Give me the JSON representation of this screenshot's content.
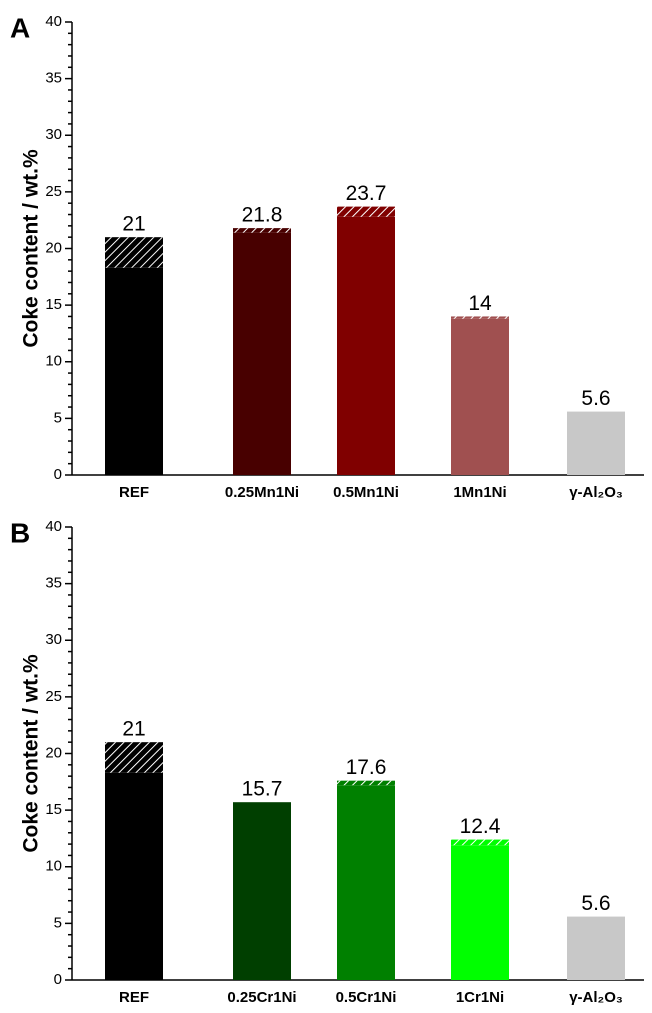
{
  "chart_data": [
    {
      "type": "bar",
      "panel_label": "A",
      "ylabel": "Coke content / wt.%",
      "categories": [
        "REF",
        "0.25Mn1Ni",
        "0.5Mn1Ni",
        "1Mn1Ni",
        "γ-Al₂O₃"
      ],
      "colors": [
        "#000000",
        "#480000",
        "#800000",
        "#a05050",
        "#c8c8c8"
      ],
      "series": [
        {
          "values": [
            18.3,
            21.4,
            22.8,
            13.8,
            5.6
          ]
        },
        {
          "values": [
            2.7,
            0.4,
            0.9,
            0.2,
            0
          ],
          "hatch": true
        }
      ],
      "totals": [
        21,
        21.8,
        23.7,
        14,
        5.6
      ],
      "ylim": [
        0,
        40
      ],
      "yticks": [
        0,
        5,
        10,
        15,
        20,
        25,
        30,
        35,
        40
      ]
    },
    {
      "type": "bar",
      "panel_label": "B",
      "ylabel": "Coke content / wt.%",
      "categories": [
        "REF",
        "0.25Cr1Ni",
        "0.5Cr1Ni",
        "1Cr1Ni",
        "γ-Al₂O₃"
      ],
      "colors": [
        "#000000",
        "#003f00",
        "#008000",
        "#00ff00",
        "#c8c8c8"
      ],
      "series": [
        {
          "values": [
            18.3,
            15.7,
            17.2,
            11.9,
            5.6
          ]
        },
        {
          "values": [
            2.7,
            0,
            0.4,
            0.5,
            0
          ],
          "hatch": true
        }
      ],
      "totals": [
        21,
        15.7,
        17.6,
        12.4,
        5.6
      ],
      "ylim": [
        0,
        40
      ],
      "yticks": [
        0,
        5,
        10,
        15,
        20,
        25,
        30,
        35,
        40
      ]
    }
  ]
}
